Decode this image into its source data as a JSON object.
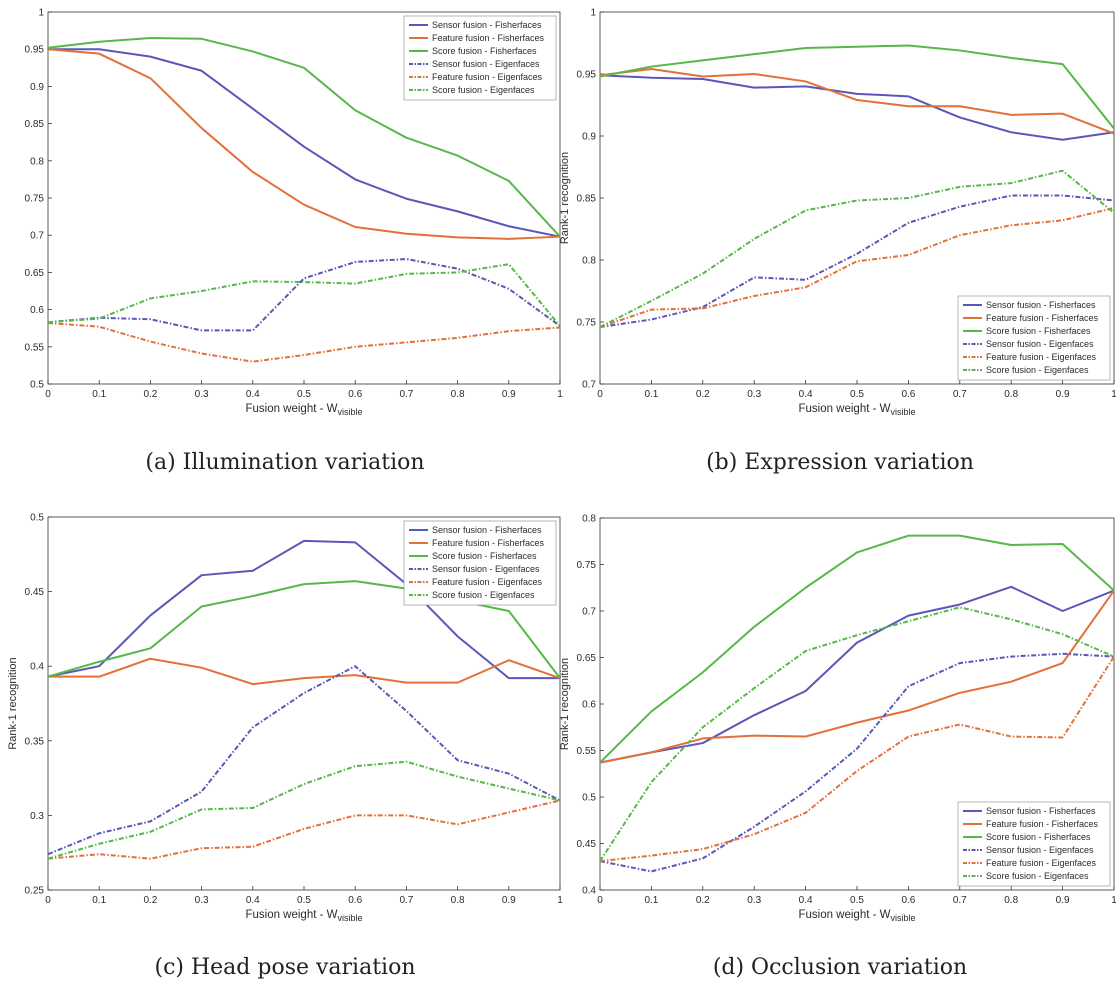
{
  "colors": {
    "sensor": "#5a57b8",
    "feature": "#e2703a",
    "score": "#56b848",
    "axis": "#333333",
    "grid": "#dddddd"
  },
  "captions": [
    "(a) Illumination variation",
    "(b) Expression variation",
    "(c) Head pose variation",
    "(d) Occlusion variation"
  ],
  "chart_data": [
    {
      "type": "line",
      "title": "",
      "xlabel": "Fusion weight - W",
      "xlabel_sub": "visible",
      "ylabel": "",
      "xlim": [
        0,
        1
      ],
      "ylim": [
        0.5,
        1
      ],
      "xticks": [
        "0",
        "0.1",
        "0.2",
        "0.3",
        "0.4",
        "0.5",
        "0.6",
        "0.7",
        "0.8",
        "0.9",
        "1"
      ],
      "yticks": [
        "0.5",
        "0.55",
        "0.6",
        "0.65",
        "0.7",
        "0.75",
        "0.8",
        "0.85",
        "0.9",
        "0.95",
        "1"
      ],
      "legend_position": "top-right",
      "x": [
        0,
        0.1,
        0.2,
        0.3,
        0.4,
        0.5,
        0.6,
        0.7,
        0.8,
        0.9,
        1
      ],
      "series": [
        {
          "name": "Sensor fusion - Fisherfaces",
          "color": "#5a57b8",
          "dashed": false,
          "values": [
            0.95,
            0.95,
            0.94,
            0.921,
            0.87,
            0.819,
            0.775,
            0.749,
            0.732,
            0.712,
            0.698
          ]
        },
        {
          "name": "Feature fusion - Fisherfaces",
          "color": "#e2703a",
          "dashed": false,
          "values": [
            0.95,
            0.944,
            0.911,
            0.844,
            0.785,
            0.741,
            0.711,
            0.702,
            0.697,
            0.695,
            0.698
          ]
        },
        {
          "name": "Score fusion - Fisherfaces",
          "color": "#56b848",
          "dashed": false,
          "values": [
            0.952,
            0.96,
            0.965,
            0.964,
            0.947,
            0.925,
            0.868,
            0.831,
            0.807,
            0.773,
            0.698
          ]
        },
        {
          "name": "Sensor fusion - Eigenfaces",
          "color": "#5a57b8",
          "dashed": true,
          "values": [
            0.583,
            0.589,
            0.587,
            0.572,
            0.572,
            0.642,
            0.664,
            0.668,
            0.655,
            0.628,
            0.578
          ]
        },
        {
          "name": "Feature fusion - Eigenfaces",
          "color": "#e2703a",
          "dashed": true,
          "values": [
            0.582,
            0.577,
            0.557,
            0.541,
            0.53,
            0.539,
            0.55,
            0.556,
            0.562,
            0.571,
            0.576
          ]
        },
        {
          "name": "Score fusion - Eigenfaces",
          "color": "#56b848",
          "dashed": true,
          "values": [
            0.583,
            0.588,
            0.615,
            0.625,
            0.638,
            0.637,
            0.635,
            0.648,
            0.65,
            0.661,
            0.578
          ]
        }
      ]
    },
    {
      "type": "line",
      "title": "",
      "xlabel": "Fusion weight - W",
      "xlabel_sub": "visible",
      "ylabel": "Rank-1 recognition",
      "xlim": [
        0,
        1
      ],
      "ylim": [
        0.7,
        1
      ],
      "xticks": [
        "0",
        "0.1",
        "0.2",
        "0.3",
        "0.4",
        "0.5",
        "0.6",
        "0.7",
        "0.8",
        "0.9",
        "1"
      ],
      "yticks": [
        "0.7",
        "0.75",
        "0.8",
        "0.85",
        "0.9",
        "0.95",
        "1"
      ],
      "legend_position": "bottom-right",
      "x": [
        0,
        0.1,
        0.2,
        0.3,
        0.4,
        0.5,
        0.6,
        0.7,
        0.8,
        0.9,
        1
      ],
      "series": [
        {
          "name": "Sensor fusion - Fisherfaces",
          "color": "#5a57b8",
          "dashed": false,
          "values": [
            0.949,
            0.947,
            0.946,
            0.939,
            0.94,
            0.934,
            0.932,
            0.915,
            0.903,
            0.897,
            0.903
          ]
        },
        {
          "name": "Feature fusion - Fisherfaces",
          "color": "#e2703a",
          "dashed": false,
          "values": [
            0.949,
            0.954,
            0.948,
            0.95,
            0.944,
            0.929,
            0.924,
            0.924,
            0.917,
            0.918,
            0.902
          ]
        },
        {
          "name": "Score fusion - Fisherfaces",
          "color": "#56b848",
          "dashed": false,
          "values": [
            0.948,
            0.956,
            0.961,
            0.966,
            0.971,
            0.972,
            0.973,
            0.969,
            0.963,
            0.958,
            0.906
          ]
        },
        {
          "name": "Sensor fusion - Eigenfaces",
          "color": "#5a57b8",
          "dashed": true,
          "values": [
            0.746,
            0.752,
            0.762,
            0.786,
            0.784,
            0.805,
            0.83,
            0.843,
            0.852,
            0.852,
            0.848
          ]
        },
        {
          "name": "Feature fusion - Eigenfaces",
          "color": "#e2703a",
          "dashed": true,
          "values": [
            0.746,
            0.76,
            0.761,
            0.771,
            0.778,
            0.799,
            0.804,
            0.82,
            0.828,
            0.832,
            0.842
          ]
        },
        {
          "name": "Score fusion - Eigenfaces",
          "color": "#56b848",
          "dashed": true,
          "values": [
            0.746,
            0.767,
            0.789,
            0.817,
            0.84,
            0.848,
            0.85,
            0.859,
            0.862,
            0.872,
            0.838
          ]
        }
      ]
    },
    {
      "type": "line",
      "title": "",
      "xlabel": "Fusion weight - W",
      "xlabel_sub": "visible",
      "ylabel": "Rank-1 recognition",
      "xlim": [
        0,
        1
      ],
      "ylim": [
        0.25,
        0.5
      ],
      "xticks": [
        "0",
        "0.1",
        "0.2",
        "0.3",
        "0.4",
        "0.5",
        "0.6",
        "0.7",
        "0.8",
        "0.9",
        "1"
      ],
      "yticks": [
        "0.25",
        "0.3",
        "0.35",
        "0.4",
        "0.45",
        "0.5"
      ],
      "legend_position": "top-right",
      "x": [
        0,
        0.1,
        0.2,
        0.3,
        0.4,
        0.5,
        0.6,
        0.7,
        0.8,
        0.9,
        1
      ],
      "series": [
        {
          "name": "Sensor fusion - Fisherfaces",
          "color": "#5a57b8",
          "dashed": false,
          "values": [
            0.393,
            0.4,
            0.434,
            0.461,
            0.464,
            0.484,
            0.483,
            0.455,
            0.42,
            0.392,
            0.392
          ]
        },
        {
          "name": "Feature fusion - Fisherfaces",
          "color": "#e2703a",
          "dashed": false,
          "values": [
            0.393,
            0.393,
            0.405,
            0.399,
            0.388,
            0.392,
            0.394,
            0.389,
            0.389,
            0.404,
            0.392
          ]
        },
        {
          "name": "Score fusion - Fisherfaces",
          "color": "#56b848",
          "dashed": false,
          "values": [
            0.393,
            0.403,
            0.412,
            0.44,
            0.447,
            0.455,
            0.457,
            0.452,
            0.444,
            0.437,
            0.392
          ]
        },
        {
          "name": "Sensor fusion - Eigenfaces",
          "color": "#5a57b8",
          "dashed": true,
          "values": [
            0.274,
            0.288,
            0.296,
            0.316,
            0.359,
            0.382,
            0.4,
            0.37,
            0.337,
            0.328,
            0.31
          ]
        },
        {
          "name": "Feature fusion - Eigenfaces",
          "color": "#e2703a",
          "dashed": true,
          "values": [
            0.271,
            0.274,
            0.271,
            0.278,
            0.279,
            0.291,
            0.3,
            0.3,
            0.294,
            0.302,
            0.31
          ]
        },
        {
          "name": "Score fusion - Eigenfaces",
          "color": "#56b848",
          "dashed": true,
          "values": [
            0.271,
            0.281,
            0.289,
            0.304,
            0.305,
            0.321,
            0.333,
            0.336,
            0.326,
            0.318,
            0.31
          ]
        }
      ]
    },
    {
      "type": "line",
      "title": "",
      "xlabel": "Fusion weight - W",
      "xlabel_sub": "visible",
      "ylabel": "Rank-1 recognition",
      "xlim": [
        0,
        1
      ],
      "ylim": [
        0.4,
        0.8
      ],
      "xticks": [
        "0",
        "0.1",
        "0.2",
        "0.3",
        "0.4",
        "0.5",
        "0.6",
        "0.7",
        "0.8",
        "0.9",
        "1"
      ],
      "yticks": [
        "0.4",
        "0.45",
        "0.5",
        "0.55",
        "0.6",
        "0.65",
        "0.7",
        "0.75",
        "0.8"
      ],
      "legend_position": "bottom-right",
      "x": [
        0,
        0.1,
        0.2,
        0.3,
        0.4,
        0.5,
        0.6,
        0.7,
        0.8,
        0.9,
        1
      ],
      "series": [
        {
          "name": "Sensor fusion - Fisherfaces",
          "color": "#5a57b8",
          "dashed": false,
          "values": [
            0.537,
            0.548,
            0.558,
            0.588,
            0.614,
            0.666,
            0.695,
            0.707,
            0.726,
            0.7,
            0.722
          ]
        },
        {
          "name": "Feature fusion - Fisherfaces",
          "color": "#e2703a",
          "dashed": false,
          "values": [
            0.537,
            0.548,
            0.563,
            0.566,
            0.565,
            0.58,
            0.593,
            0.612,
            0.624,
            0.644,
            0.722
          ]
        },
        {
          "name": "Score fusion - Fisherfaces",
          "color": "#56b848",
          "dashed": false,
          "values": [
            0.537,
            0.592,
            0.634,
            0.683,
            0.725,
            0.763,
            0.781,
            0.781,
            0.771,
            0.772,
            0.722
          ]
        },
        {
          "name": "Sensor fusion - Eigenfaces",
          "color": "#5a57b8",
          "dashed": true,
          "values": [
            0.431,
            0.42,
            0.434,
            0.468,
            0.506,
            0.552,
            0.619,
            0.644,
            0.651,
            0.654,
            0.651
          ]
        },
        {
          "name": "Feature fusion - Eigenfaces",
          "color": "#e2703a",
          "dashed": true,
          "values": [
            0.431,
            0.437,
            0.444,
            0.46,
            0.483,
            0.528,
            0.565,
            0.578,
            0.565,
            0.564,
            0.651
          ]
        },
        {
          "name": "Score fusion - Eigenfaces",
          "color": "#56b848",
          "dashed": true,
          "values": [
            0.431,
            0.516,
            0.575,
            0.617,
            0.657,
            0.674,
            0.689,
            0.704,
            0.691,
            0.675,
            0.651
          ]
        }
      ]
    }
  ]
}
